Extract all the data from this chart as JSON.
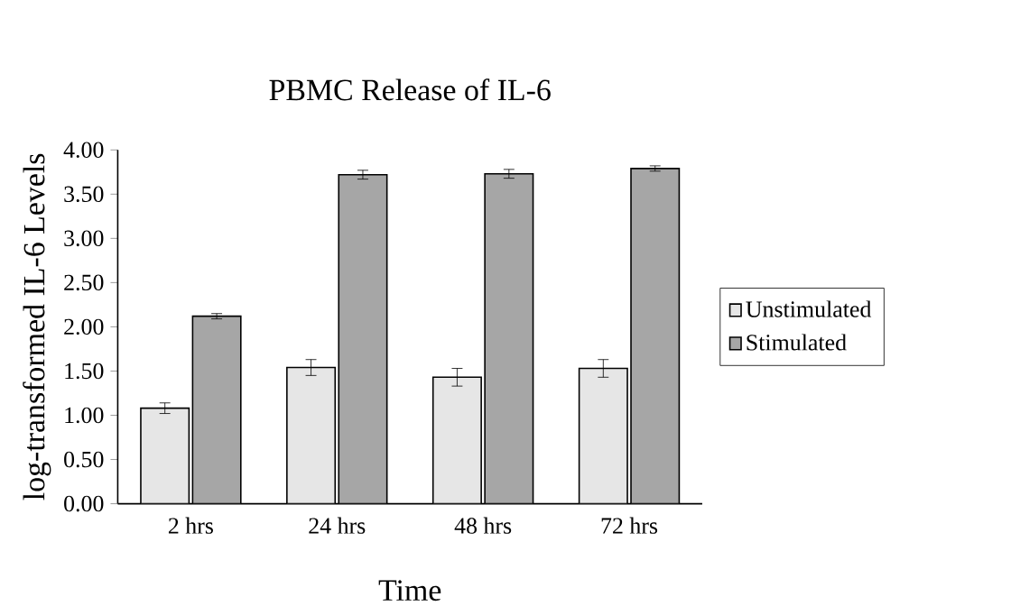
{
  "chart_data": {
    "type": "bar",
    "title": "PBMC Release of  IL-6",
    "xlabel": "Time",
    "ylabel": "log-transformed IL-6 Levels",
    "categories": [
      "2 hrs",
      "24 hrs",
      "48 hrs",
      "72 hrs"
    ],
    "series": [
      {
        "name": "Unstimulated",
        "color": "#e6e6e6",
        "values": [
          1.08,
          1.54,
          1.43,
          1.53
        ],
        "errors": [
          0.06,
          0.09,
          0.1,
          0.1
        ]
      },
      {
        "name": "Stimulated",
        "color": "#a6a6a6",
        "values": [
          2.12,
          3.72,
          3.73,
          3.79
        ],
        "errors": [
          0.03,
          0.05,
          0.05,
          0.03
        ]
      }
    ],
    "ylim": [
      0,
      4
    ],
    "yticks": [
      {
        "value": 0,
        "label": "0.00"
      },
      {
        "value": 0.5,
        "label": "0.50"
      },
      {
        "value": 1,
        "label": "1.00"
      },
      {
        "value": 1.5,
        "label": "1.50"
      },
      {
        "value": 2,
        "label": "2.00"
      },
      {
        "value": 2.5,
        "label": "2.50"
      },
      {
        "value": 3,
        "label": "3.00"
      },
      {
        "value": 3.5,
        "label": "3.50"
      },
      {
        "value": 4,
        "label": "4.00"
      }
    ],
    "legend": "right",
    "grid": false
  }
}
